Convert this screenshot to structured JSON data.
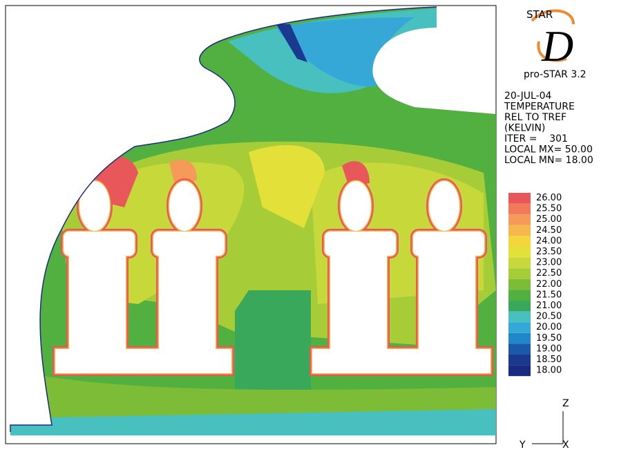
{
  "logo": {
    "star": "STAR",
    "d": "D",
    "version": "pro-STAR 3.2"
  },
  "info": [
    "20-JUL-04",
    "TEMPERATURE",
    "REL TO TREF",
    "(KELVIN)",
    "ITER =    301",
    "LOCAL MX= 50.00",
    "LOCAL MN= 18.00"
  ],
  "legend": [
    {
      "label": "26.00",
      "color": "#e8585a"
    },
    {
      "label": "25.50",
      "color": "#f07a5a"
    },
    {
      "label": "25.00",
      "color": "#f59a58"
    },
    {
      "label": "24.50",
      "color": "#f6b84c"
    },
    {
      "label": "24.00",
      "color": "#f2d63c"
    },
    {
      "label": "23.50",
      "color": "#e3e03a"
    },
    {
      "label": "23.00",
      "color": "#c6d83a"
    },
    {
      "label": "22.50",
      "color": "#a6cc38"
    },
    {
      "label": "22.00",
      "color": "#7cbc36"
    },
    {
      "label": "21.50",
      "color": "#52b040"
    },
    {
      "label": "21.00",
      "color": "#3aa85a"
    },
    {
      "label": "20.50",
      "color": "#48c0c0"
    },
    {
      "label": "20.00",
      "color": "#36a8d8"
    },
    {
      "label": "19.50",
      "color": "#1e88c8"
    },
    {
      "label": "19.00",
      "color": "#1a5aa8"
    },
    {
      "label": "18.50",
      "color": "#1a3a90"
    },
    {
      "label": "18.00",
      "color": "#1a2a80"
    }
  ],
  "axes": {
    "z": "Z",
    "y": "Y",
    "x": "X"
  }
}
